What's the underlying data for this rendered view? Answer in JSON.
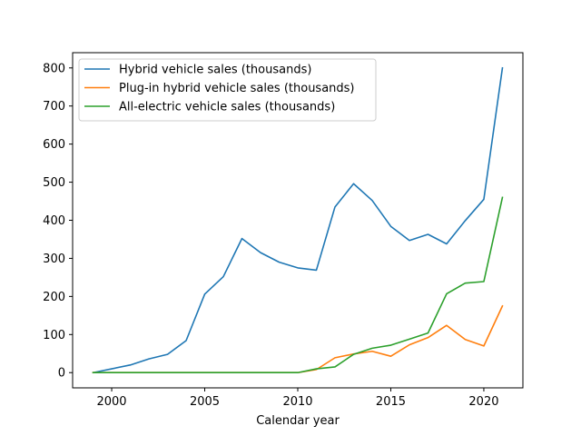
{
  "chart_data": {
    "type": "line",
    "title": "",
    "xlabel": "Calendar year",
    "ylabel": "",
    "xlim": [
      1997.9,
      2022.1
    ],
    "ylim": [
      -40,
      840
    ],
    "xticks": [
      2000,
      2005,
      2010,
      2015,
      2020
    ],
    "yticks": [
      0,
      100,
      200,
      300,
      400,
      500,
      600,
      700,
      800
    ],
    "grid": false,
    "legend_position": "top-left",
    "x": [
      1999,
      2000,
      2001,
      2002,
      2003,
      2004,
      2005,
      2006,
      2007,
      2008,
      2009,
      2010,
      2011,
      2012,
      2013,
      2014,
      2015,
      2016,
      2017,
      2018,
      2019,
      2020,
      2021
    ],
    "series": [
      {
        "name": "Hybrid vehicle sales (thousands)",
        "color": "#1f77b4",
        "values": [
          0,
          10,
          20,
          36,
          48,
          84,
          206,
          252,
          352,
          315,
          290,
          275,
          269,
          435,
          496,
          452,
          384,
          347,
          363,
          338,
          399,
          455,
          800
        ]
      },
      {
        "name": "Plug-in hybrid vehicle sales (thousands)",
        "color": "#ff7f0e",
        "values": [
          0,
          0,
          0,
          0,
          0,
          0,
          0,
          0,
          0,
          0,
          0,
          0,
          8,
          39,
          49,
          56,
          43,
          73,
          92,
          124,
          87,
          70,
          175
        ]
      },
      {
        "name": "All-electric vehicle sales (thousands)",
        "color": "#2ca02c",
        "values": [
          0,
          0,
          0,
          0,
          0,
          0,
          0,
          0,
          0,
          0,
          0,
          0,
          10,
          15,
          48,
          64,
          72,
          88,
          104,
          207,
          235,
          239,
          460
        ]
      }
    ]
  }
}
